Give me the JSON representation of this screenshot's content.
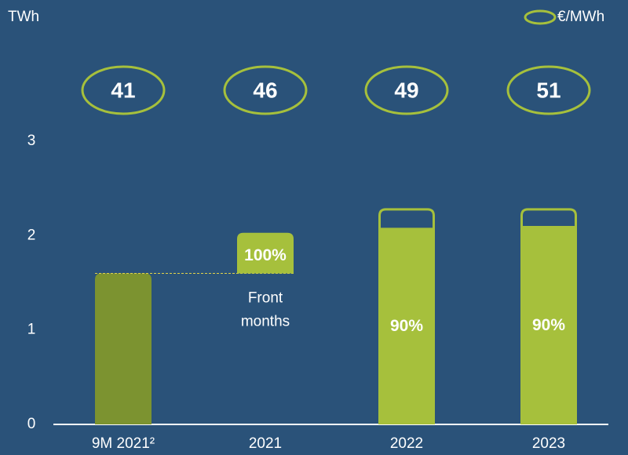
{
  "chart_data": {
    "type": "bar",
    "y_label": "TWh",
    "legend_label": "€/MWh",
    "legend_color": "#a6c03c",
    "categories": [
      "9M 2021²",
      "2021",
      "2022",
      "2023"
    ],
    "prices": [
      41,
      46,
      49,
      51
    ],
    "annotation": "Front months",
    "ylim": [
      0,
      3
    ],
    "yticks": [
      0,
      1,
      2,
      3
    ],
    "series": [
      {
        "color": "none",
        "values": [
          null,
          1.6,
          null,
          null
        ]
      },
      {
        "colors": [
          "#7c9330",
          "#a6c03c",
          "#a6c03c",
          "#a6c03c"
        ],
        "values": [
          1.6,
          0.43,
          2.07,
          2.09
        ],
        "value_labels": [
          null,
          "100%",
          "90%",
          "90%"
        ]
      },
      {
        "color": "#a6c03c",
        "outline": true,
        "values": [
          null,
          null,
          0.22,
          0.2
        ]
      }
    ]
  }
}
